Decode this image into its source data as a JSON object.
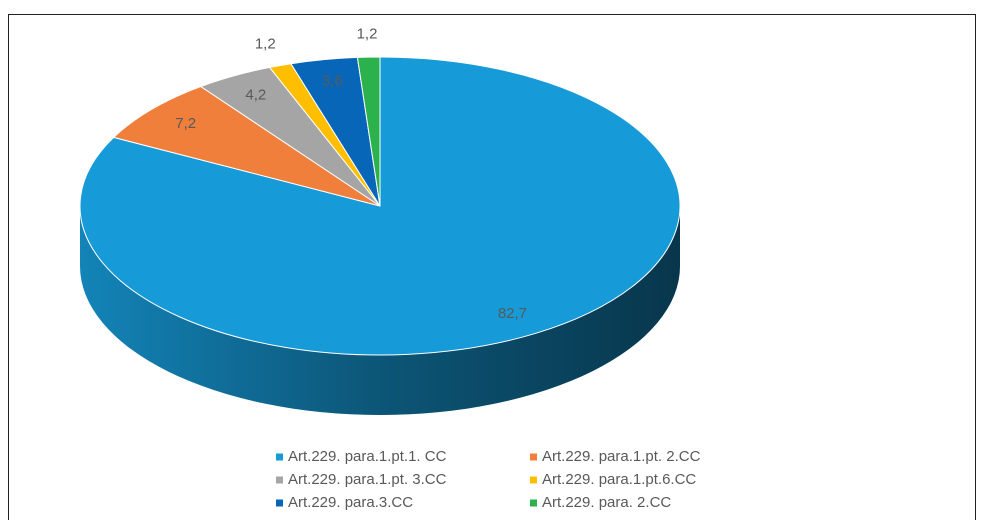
{
  "chart_data": {
    "type": "pie3d",
    "categories": [
      "Art.229. para.1.pt.1. CC",
      "Art.229. para.1.pt. 2.CC",
      "Art.229. para.1.pt. 3.CC",
      "Art.229. para.1.pt.6.CC",
      "Art.229. para.3.CC",
      "Art.229. para. 2.CC"
    ],
    "values": [
      82.7,
      7.2,
      4.2,
      1.2,
      3.6,
      1.2
    ],
    "value_labels": [
      "82,7",
      "7,2",
      "4,2",
      "1,2",
      "3,6",
      "1,2"
    ],
    "colors": [
      "#169bd8",
      "#f07f3c",
      "#a5a5a5",
      "#ffbf00",
      "#0866b8",
      "#2bb24c"
    ],
    "legend": "bottom"
  }
}
